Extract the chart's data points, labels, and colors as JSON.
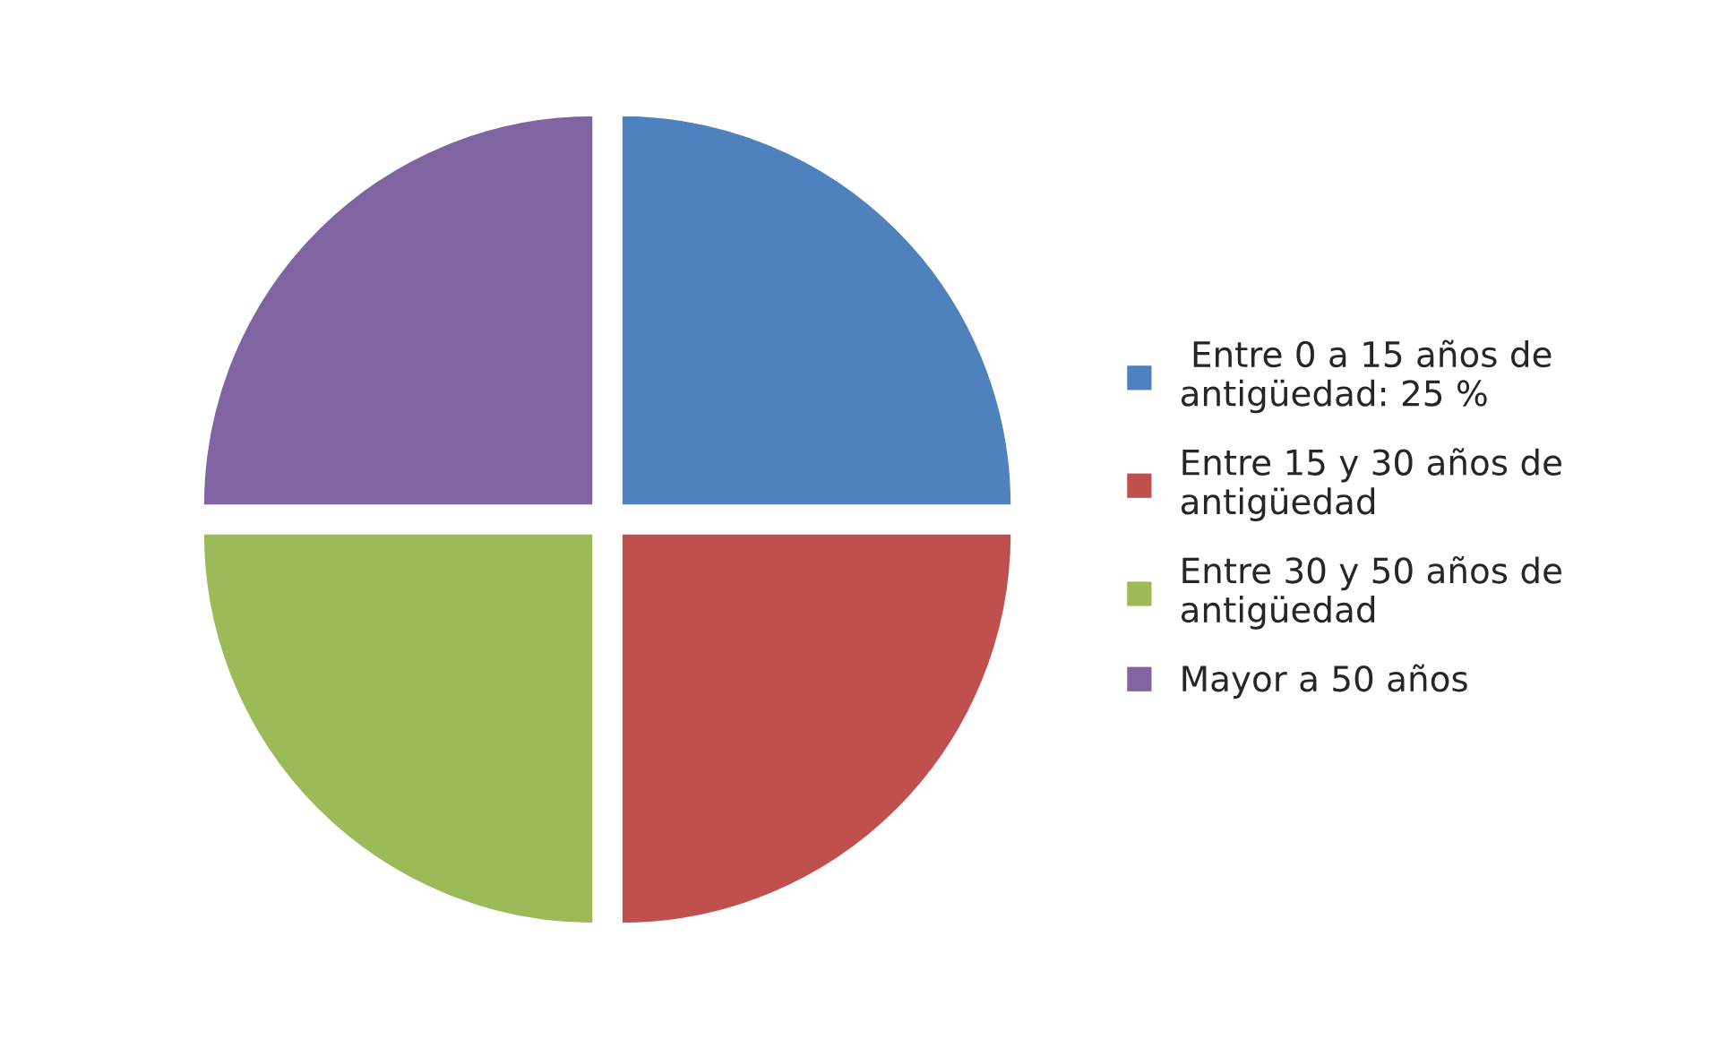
{
  "chart_data": {
    "type": "pie",
    "categories": [
      " Entre 0 a 15 años de antigüedad: 25 %",
      "Entre 15 y 30 años de antigüedad",
      "Entre 30 y 50 años de antigüedad",
      "Mayor a 50 años"
    ],
    "values": [
      25,
      25,
      25,
      25
    ],
    "colors": [
      "#4f81bd",
      "#c0504d",
      "#9bbb59",
      "#8064a2"
    ],
    "legend": "right"
  }
}
